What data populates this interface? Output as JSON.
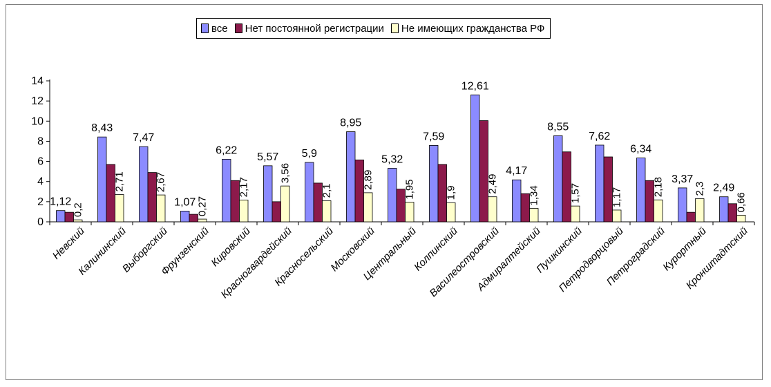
{
  "chart_data": {
    "type": "bar",
    "title": "",
    "xlabel": "",
    "ylabel": "",
    "ylim": [
      0,
      14
    ],
    "yticks": [
      0,
      2,
      4,
      6,
      8,
      10,
      12,
      14
    ],
    "grid": false,
    "legend_position": "top",
    "categories": [
      "Невский",
      "Калининский",
      "Выборгский",
      "Фрунзенский",
      "Кировский",
      "Красногвардейский",
      "Красносельский",
      "Московский",
      "Центральный",
      "Колпинский",
      "Василеостровский",
      "Адмиралтейский",
      "Пушкинский",
      "Петродворцовый",
      "Петроградский",
      "Курортный",
      "Кронштадтский"
    ],
    "series": [
      {
        "name": "все",
        "color": "#8b8bff",
        "values": [
          1.12,
          8.43,
          7.47,
          1.07,
          6.22,
          5.57,
          5.9,
          8.95,
          5.32,
          7.59,
          12.61,
          4.17,
          8.55,
          7.62,
          6.34,
          3.37,
          2.49
        ],
        "labels": [
          "1,12",
          "8,43",
          "7,47",
          "1,07",
          "6,22",
          "5,57",
          "5,9",
          "8,95",
          "5,32",
          "7,59",
          "12,61",
          "4,17",
          "8,55",
          "7,62",
          "6,34",
          "3,37",
          "2,49"
        ]
      },
      {
        "name": "Нет постоянной регистрации",
        "color": "#8c1a4b",
        "values": [
          0.95,
          5.7,
          4.9,
          0.75,
          4.1,
          2.0,
          3.85,
          6.15,
          3.25,
          5.7,
          10.05,
          2.8,
          6.95,
          6.45,
          4.1,
          0.95,
          1.8
        ],
        "labels": []
      },
      {
        "name": "Не имеющих гражданства РФ",
        "color": "#ffffcc",
        "values": [
          0.2,
          2.71,
          2.67,
          0.27,
          2.17,
          3.56,
          2.1,
          2.89,
          1.95,
          1.9,
          2.49,
          1.34,
          1.57,
          1.17,
          2.18,
          2.3,
          0.66
        ],
        "labels": [
          "0,2",
          "2,71",
          "2,67",
          "0,27",
          "2,17",
          "3,56",
          "2,1",
          "2,89",
          "1,95",
          "1,9",
          "2,49",
          "1,34",
          "1,57",
          "1,17",
          "2,18",
          "2,3",
          "0,66"
        ]
      }
    ]
  }
}
